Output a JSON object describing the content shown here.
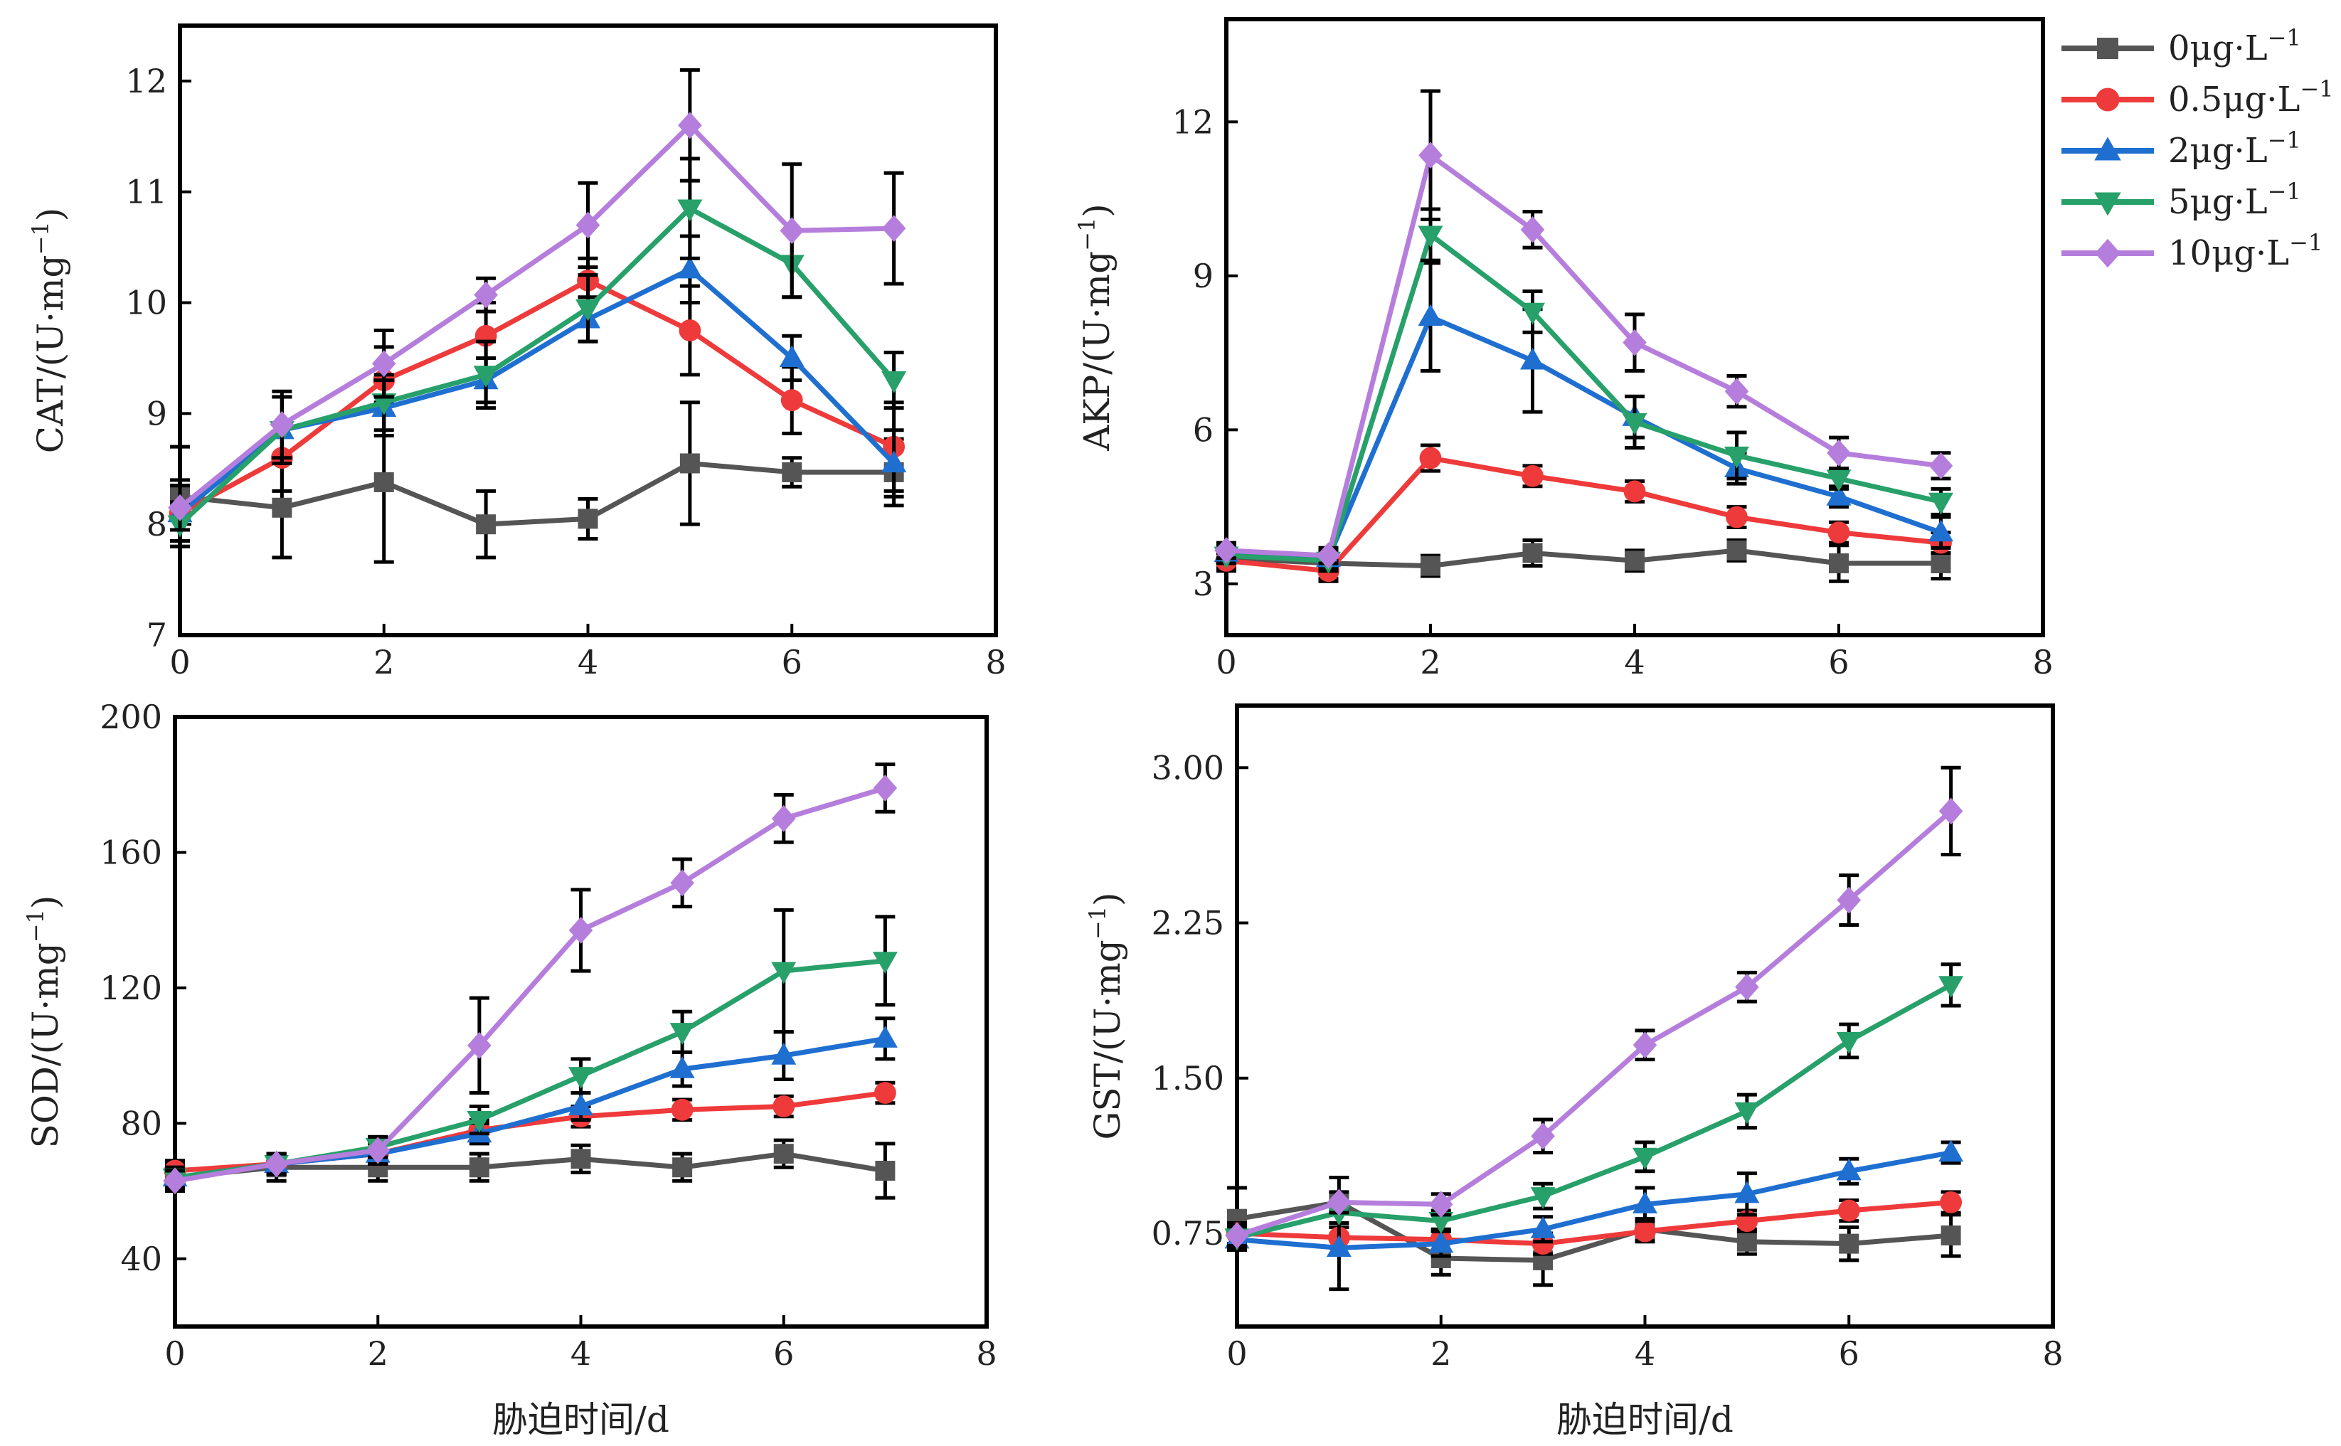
{
  "legend": [
    {
      "label": "0μg·L",
      "sup": "−1",
      "color": "#555555",
      "marker": "square"
    },
    {
      "label": "0.5μg·L",
      "sup": "−1",
      "color": "#EE3A3A",
      "marker": "circle"
    },
    {
      "label": "2μg·L",
      "sup": "−1",
      "color": "#1F6FD1",
      "marker": "triangle-up"
    },
    {
      "label": "5μg·L",
      "sup": "−1",
      "color": "#27A06A",
      "marker": "triangle-down"
    },
    {
      "label": "10μg·L",
      "sup": "−1",
      "color": "#B57EDC",
      "marker": "diamond"
    }
  ],
  "chart_data": [
    {
      "type": "line",
      "ylabel": "CAT/(U·mg",
      "ylabel_sup": "−1",
      "ylabel_close": ")",
      "xlabel": "",
      "xlim": [
        0,
        8
      ],
      "xticks": [
        "0",
        "2",
        "4",
        "6",
        "8"
      ],
      "ylim": [
        7,
        12.5
      ],
      "yticks": [
        "7",
        "8",
        "9",
        "10",
        "11",
        "12"
      ],
      "x": [
        0,
        1,
        2,
        3,
        4,
        5,
        6,
        7
      ],
      "series": [
        {
          "name": "0μg·L⁻¹",
          "values": [
            8.25,
            8.15,
            8.38,
            8.0,
            8.05,
            8.55,
            8.47,
            8.47
          ],
          "errors": [
            0.45,
            0.45,
            0.72,
            0.3,
            0.18,
            0.55,
            0.13,
            0.3
          ]
        },
        {
          "name": "0.5μg·L⁻¹",
          "values": [
            8.1,
            8.6,
            9.3,
            9.7,
            10.2,
            9.75,
            9.12,
            8.7
          ],
          "errors": [
            0.3,
            0.3,
            0.3,
            0.3,
            0.2,
            0.4,
            0.3,
            0.4
          ]
        },
        {
          "name": "2μg·L⁻¹",
          "values": [
            8.1,
            8.85,
            9.05,
            9.3,
            9.85,
            10.3,
            9.5,
            8.55
          ],
          "errors": [
            0.25,
            0.3,
            0.25,
            0.2,
            0.2,
            0.3,
            0.2,
            0.3
          ]
        },
        {
          "name": "5μg·L⁻¹",
          "values": [
            8.0,
            8.85,
            9.1,
            9.35,
            9.95,
            10.85,
            10.35,
            9.3
          ],
          "errors": [
            0.2,
            0.3,
            0.25,
            0.3,
            0.3,
            0.45,
            0.3,
            0.25
          ]
        },
        {
          "name": "10μg·L⁻¹",
          "values": [
            8.15,
            8.9,
            9.45,
            10.07,
            10.7,
            11.6,
            10.65,
            10.67
          ],
          "errors": [
            0.2,
            0.3,
            0.3,
            0.15,
            0.38,
            0.5,
            0.6,
            0.5
          ]
        }
      ]
    },
    {
      "type": "line",
      "ylabel": "AKP/(U·mg",
      "ylabel_sup": "−1",
      "ylabel_close": ")",
      "xlabel": "",
      "xlim": [
        0,
        8
      ],
      "xticks": [
        "0",
        "2",
        "4",
        "6",
        "8"
      ],
      "ylim": [
        2,
        14
      ],
      "yticks": [
        "3",
        "6",
        "9",
        "12"
      ],
      "x": [
        0,
        1,
        2,
        3,
        4,
        5,
        6,
        7
      ],
      "series": [
        {
          "name": "0μg·L⁻¹",
          "values": [
            3.5,
            3.4,
            3.35,
            3.6,
            3.45,
            3.65,
            3.4,
            3.4
          ],
          "errors": [
            0.25,
            0.3,
            0.2,
            0.25,
            0.2,
            0.2,
            0.35,
            0.3
          ]
        },
        {
          "name": "0.5μg·L⁻¹",
          "values": [
            3.45,
            3.25,
            5.45,
            5.1,
            4.8,
            4.3,
            4.0,
            3.8
          ],
          "errors": [
            0.15,
            0.2,
            0.25,
            0.2,
            0.2,
            0.2,
            0.2,
            0.2
          ]
        },
        {
          "name": "2μg·L⁻¹",
          "values": [
            3.6,
            3.5,
            8.2,
            7.35,
            6.25,
            5.25,
            4.7,
            4.0
          ],
          "errors": [
            0.15,
            0.2,
            1.05,
            1.0,
            0.4,
            0.3,
            0.2,
            0.3
          ]
        },
        {
          "name": "5μg·L⁻¹",
          "values": [
            3.55,
            3.45,
            9.8,
            8.3,
            6.15,
            5.5,
            5.05,
            4.6
          ],
          "errors": [
            0.15,
            0.2,
            0.5,
            0.4,
            0.5,
            0.45,
            0.2,
            0.25
          ]
        },
        {
          "name": "10μg·L⁻¹",
          "values": [
            3.65,
            3.55,
            11.35,
            9.9,
            7.7,
            6.75,
            5.55,
            5.3
          ],
          "errors": [
            0.15,
            0.15,
            1.25,
            0.35,
            0.55,
            0.3,
            0.3,
            0.25
          ]
        }
      ]
    },
    {
      "type": "line",
      "ylabel": "SOD/(U·mg",
      "ylabel_sup": "−1",
      "ylabel_close": ")",
      "xlabel": "胁迫时间/d",
      "xlim": [
        0,
        8
      ],
      "xticks": [
        "0",
        "2",
        "4",
        "6",
        "8"
      ],
      "ylim": [
        20,
        200
      ],
      "yticks": [
        "40",
        "80",
        "120",
        "160",
        "200"
      ],
      "x": [
        0,
        1,
        2,
        3,
        4,
        5,
        6,
        7
      ],
      "series": [
        {
          "name": "0μg·L⁻¹",
          "values": [
            64,
            67,
            67,
            67,
            69.5,
            67,
            71,
            66
          ],
          "errors": [
            4,
            4,
            4,
            4,
            4,
            4,
            4,
            8
          ]
        },
        {
          "name": "0.5μg·L⁻¹",
          "values": [
            66,
            68,
            71,
            78,
            82,
            84,
            85,
            89
          ],
          "errors": [
            3,
            3,
            3,
            3,
            3,
            3,
            3,
            3
          ]
        },
        {
          "name": "2μg·L⁻¹",
          "values": [
            64,
            68,
            71,
            77,
            85,
            96,
            100,
            105
          ],
          "errors": [
            3,
            3,
            3,
            3,
            4,
            5,
            7,
            6
          ]
        },
        {
          "name": "5μg·L⁻¹",
          "values": [
            64,
            68,
            73,
            81,
            94,
            107,
            125,
            128
          ],
          "errors": [
            3,
            3,
            3,
            4,
            5,
            6,
            18,
            13
          ]
        },
        {
          "name": "10μg·L⁻¹",
          "values": [
            63,
            68,
            72,
            103,
            137,
            151,
            170,
            179
          ],
          "errors": [
            3,
            3,
            4,
            14,
            12,
            7,
            7,
            7
          ]
        }
      ]
    },
    {
      "type": "line",
      "ylabel": "GST/(U·mg",
      "ylabel_sup": "−1",
      "ylabel_close": ")",
      "xlabel": "胁迫时间/d",
      "xlim": [
        0,
        8
      ],
      "xticks": [
        "0",
        "2",
        "4",
        "6",
        "8"
      ],
      "ylim": [
        0.3,
        3.3
      ],
      "yticks": [
        "0.75",
        "1.50",
        "2.25",
        "3.00"
      ],
      "x": [
        0,
        1,
        2,
        3,
        4,
        5,
        6,
        7
      ],
      "series": [
        {
          "name": "0μg·L⁻¹",
          "values": [
            0.82,
            0.9,
            0.63,
            0.62,
            0.77,
            0.71,
            0.7,
            0.74
          ],
          "errors": [
            0.15,
            0.12,
            0.08,
            0.12,
            0.05,
            0.06,
            0.08,
            0.1
          ]
        },
        {
          "name": "0.5μg·L⁻¹",
          "values": [
            0.75,
            0.73,
            0.72,
            0.7,
            0.76,
            0.81,
            0.86,
            0.9
          ],
          "errors": [
            0.05,
            0.05,
            0.05,
            0.05,
            0.05,
            0.05,
            0.05,
            0.05
          ]
        },
        {
          "name": "2μg·L⁻¹",
          "values": [
            0.72,
            0.68,
            0.7,
            0.77,
            0.89,
            0.94,
            1.05,
            1.14
          ],
          "errors": [
            0.05,
            0.2,
            0.06,
            0.06,
            0.08,
            0.1,
            0.06,
            0.05
          ]
        },
        {
          "name": "5μg·L⁻¹",
          "values": [
            0.73,
            0.85,
            0.81,
            0.93,
            1.12,
            1.34,
            1.68,
            1.95
          ],
          "errors": [
            0.05,
            0.05,
            0.05,
            0.06,
            0.07,
            0.08,
            0.08,
            0.1
          ]
        },
        {
          "name": "10μg·L⁻¹",
          "values": [
            0.74,
            0.9,
            0.89,
            1.22,
            1.66,
            1.94,
            2.36,
            2.79
          ],
          "errors": [
            0.05,
            0.05,
            0.05,
            0.08,
            0.07,
            0.07,
            0.12,
            0.21
          ]
        }
      ]
    }
  ]
}
